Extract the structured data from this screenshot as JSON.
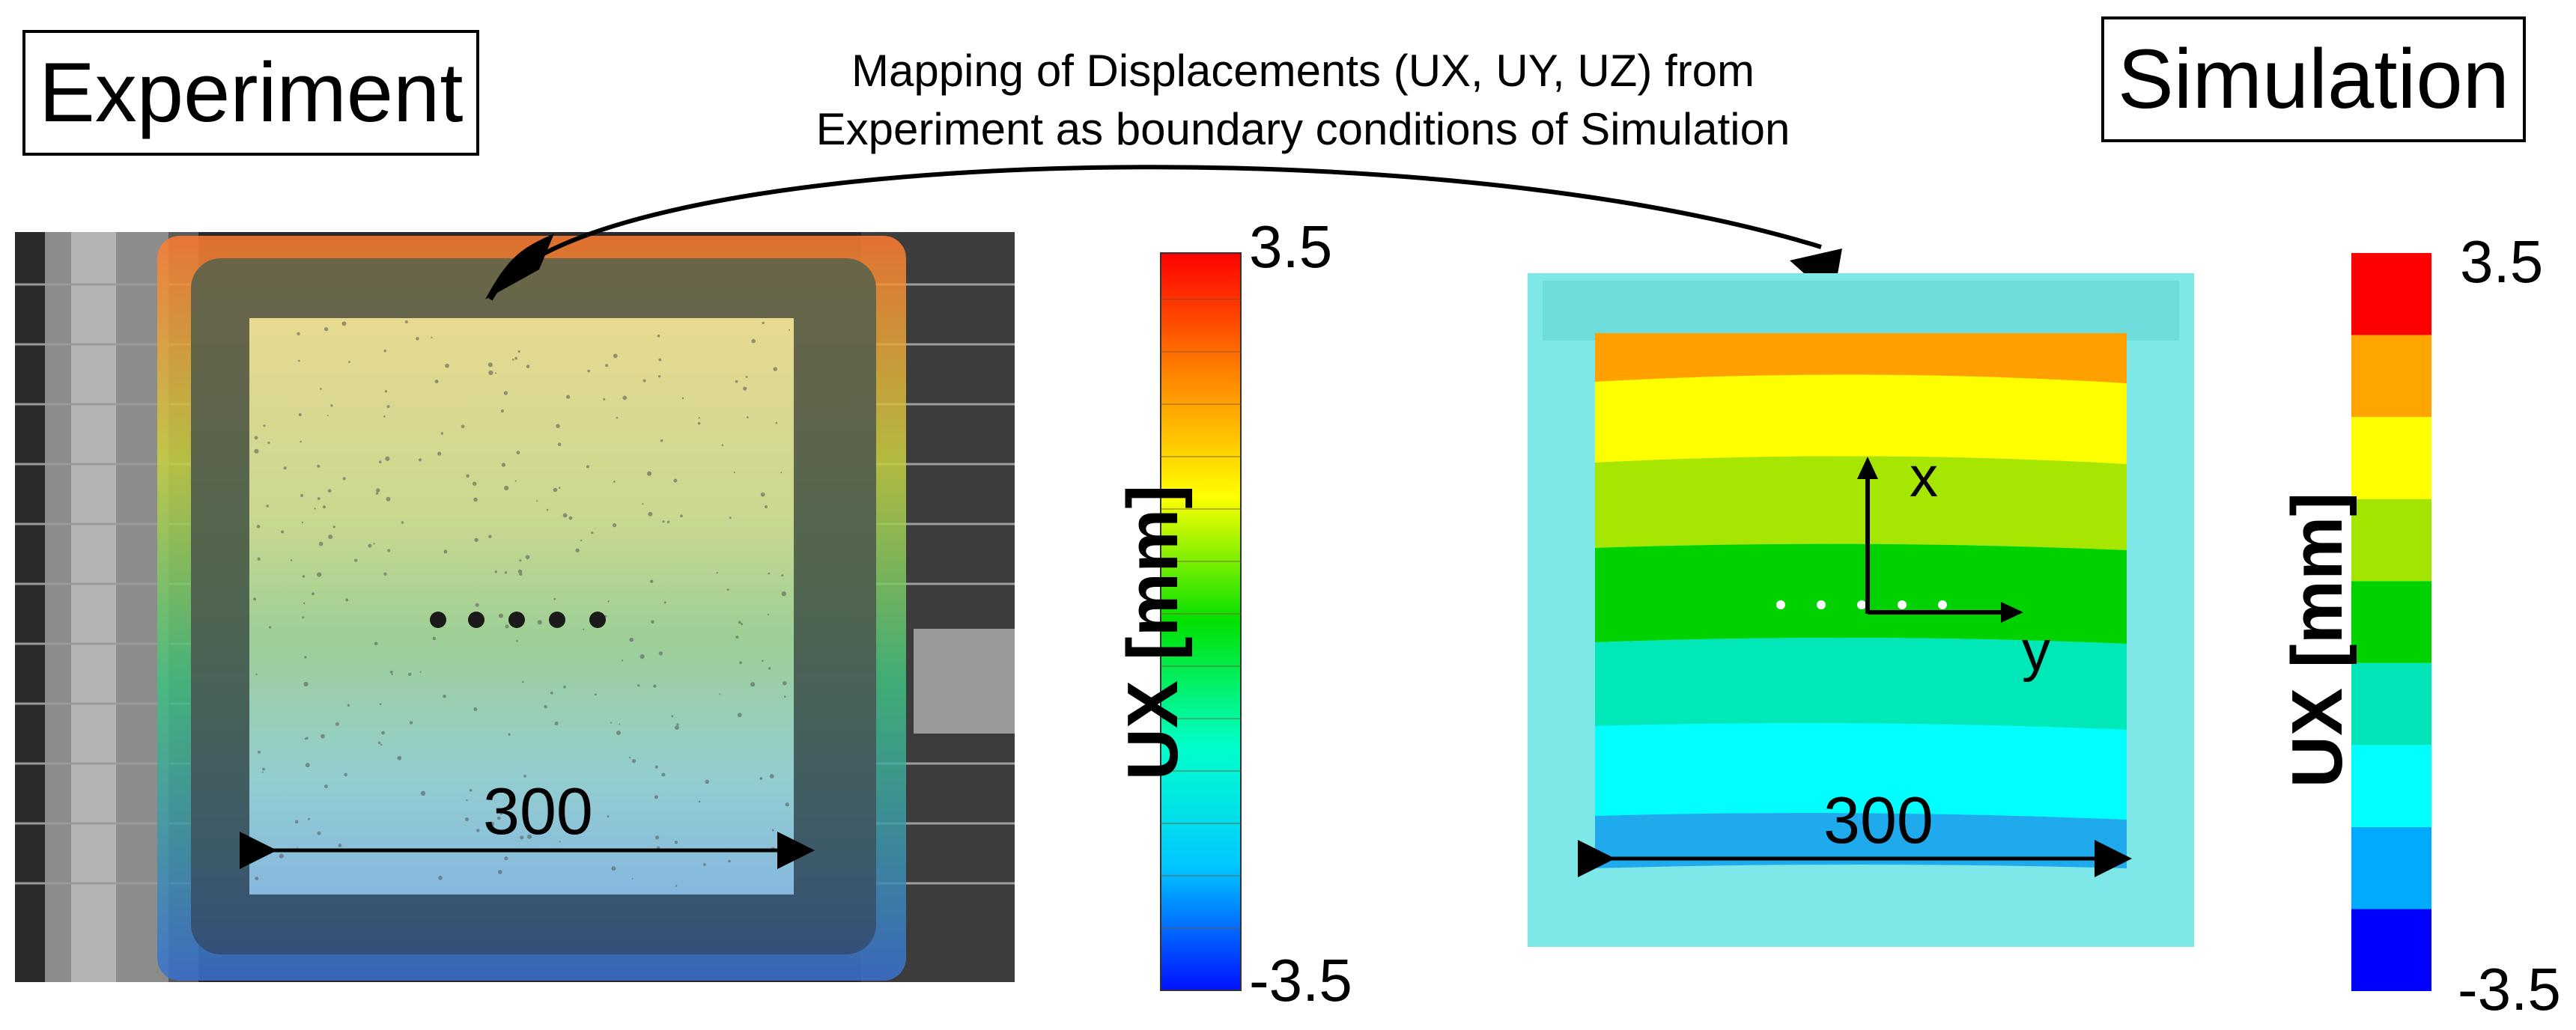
{
  "labels": {
    "experiment": "Experiment",
    "simulation": "Simulation"
  },
  "caption": {
    "line1": "Mapping of Displacements (UX, UY, UZ) from",
    "line2": "Experiment as boundary conditions of Simulation"
  },
  "colorbar_left": {
    "title": "UX [mm]",
    "max_label": "3.5",
    "min_label": "-3.5",
    "type": "continuous"
  },
  "colorbar_right": {
    "title": "UX [mm]",
    "max_label": "3.5",
    "min_label": "-3.5",
    "type": "banded",
    "bands": [
      "#0000ff",
      "#00aaff",
      "#00ffff",
      "#00e6b8",
      "#00d200",
      "#a2e600",
      "#ffff00",
      "#ffa500",
      "#ff0000"
    ]
  },
  "experiment_panel": {
    "dimension": "300"
  },
  "simulation_panel": {
    "dimension": "300",
    "axis_x": "x",
    "axis_y": "y"
  }
}
